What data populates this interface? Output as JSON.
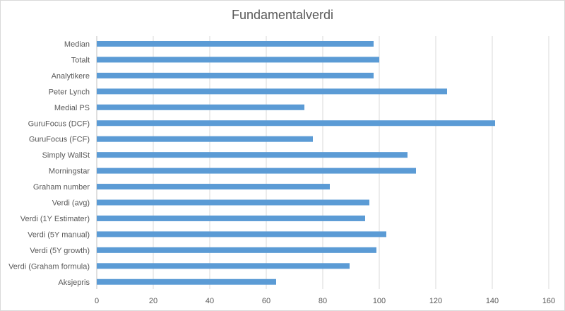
{
  "chart_data": {
    "type": "bar",
    "orientation": "horizontal",
    "title": "Fundamentalverdi",
    "categories": [
      "Median",
      "Totalt",
      "Analytikere",
      "Peter Lynch",
      "Medial PS",
      "GuruFocus (DCF)",
      "GuruFocus (FCF)",
      "Simply WallSt",
      "Morningstar",
      "Graham number",
      "Verdi (avg)",
      "Verdi (1Y Estimater)",
      "Verdi (5Y manual)",
      "Verdi (5Y growth)",
      "Verdi (Graham formula)",
      "Aksjepris"
    ],
    "values": [
      98,
      100,
      98,
      124,
      73.5,
      141,
      76.5,
      110,
      113,
      82.5,
      96.5,
      95,
      102.5,
      99,
      89.5,
      63.5
    ],
    "xlim": [
      0,
      160
    ],
    "xticks": [
      0,
      20,
      40,
      60,
      80,
      100,
      120,
      140,
      160
    ],
    "xlabel": "",
    "ylabel": "",
    "bar_color": "#5b9bd5",
    "grid": "vertical",
    "gridline_color": "#d9d9d9",
    "legend": "none"
  }
}
